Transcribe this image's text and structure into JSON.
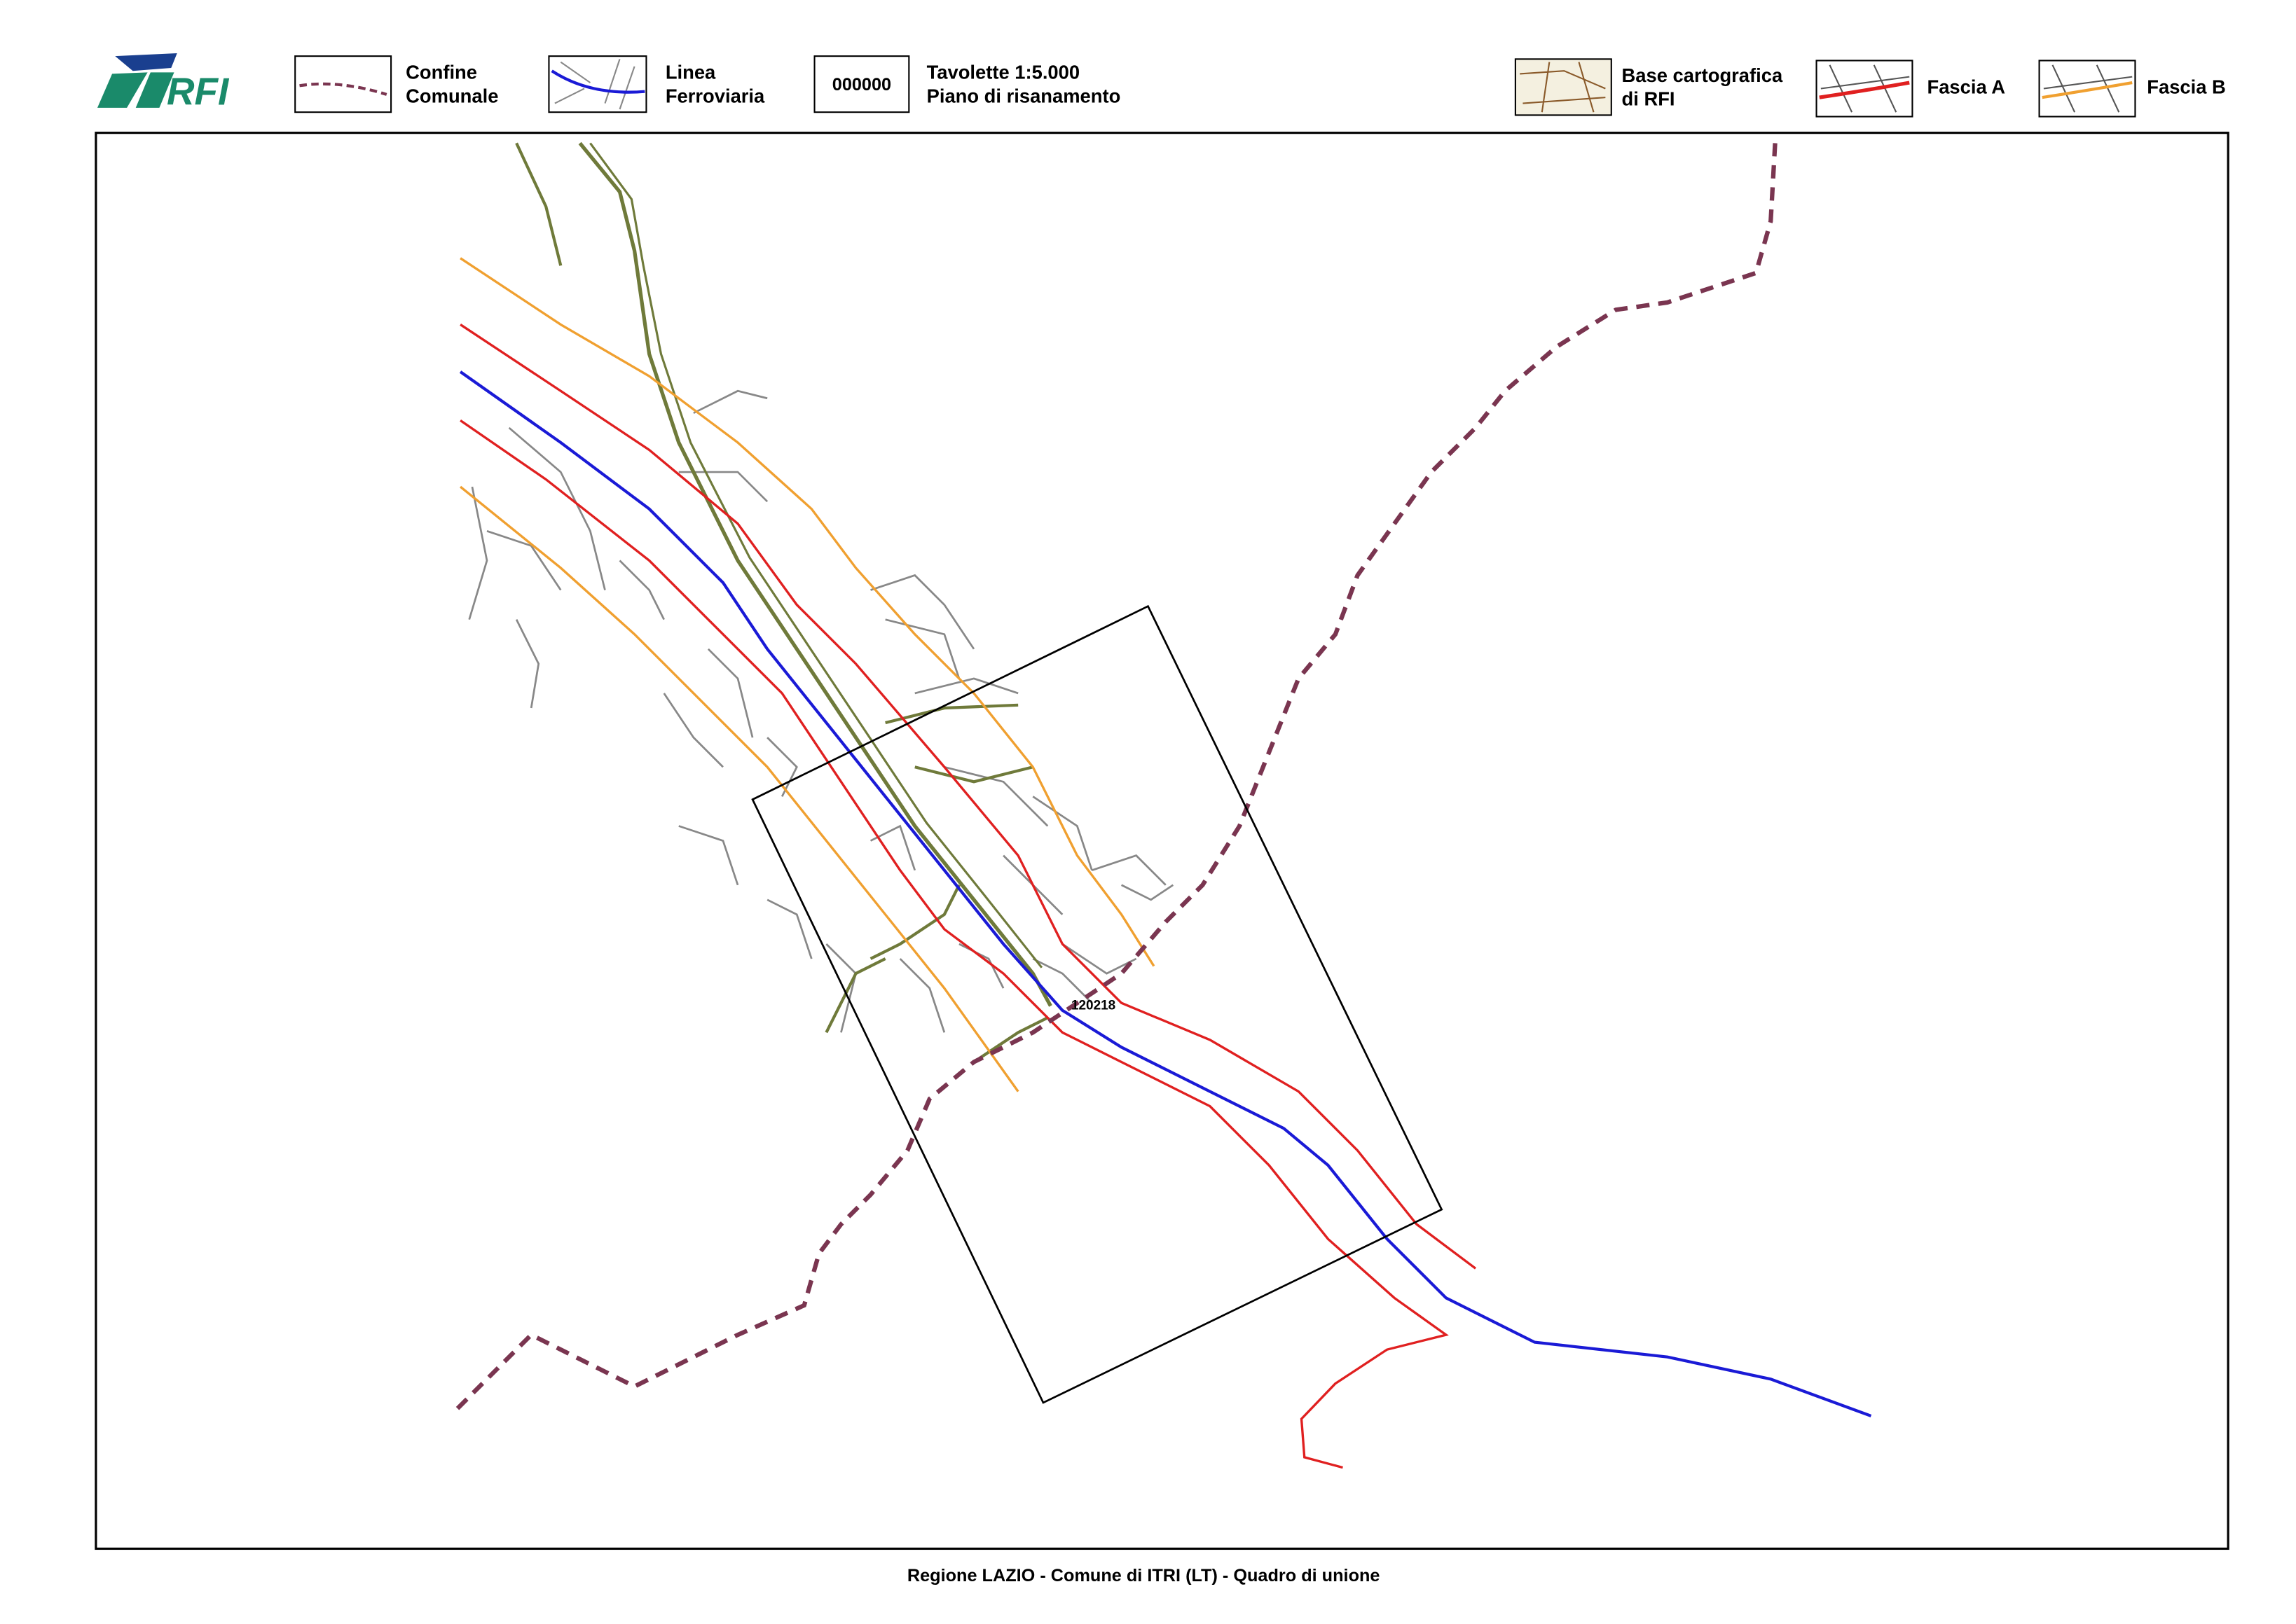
{
  "header": {
    "logo": "RFI"
  },
  "legend": [
    {
      "lines": [
        "Confine",
        "Comunale"
      ]
    },
    {
      "lines": [
        "Linea",
        "Ferroviaria"
      ]
    },
    {
      "swatch": "000000",
      "lines": [
        "Tavolette 1:5.000",
        "Piano di risanamento"
      ]
    },
    {
      "lines": [
        "Base cartografica",
        "di RFI"
      ]
    },
    {
      "lines": [
        "Fascia A"
      ]
    },
    {
      "lines": [
        "Fascia B"
      ]
    }
  ],
  "map": {
    "tile_label": "120218"
  },
  "footer": {
    "caption": "Regione LAZIO - Comune di ITRI (LT) - Quadro di unione"
  }
}
